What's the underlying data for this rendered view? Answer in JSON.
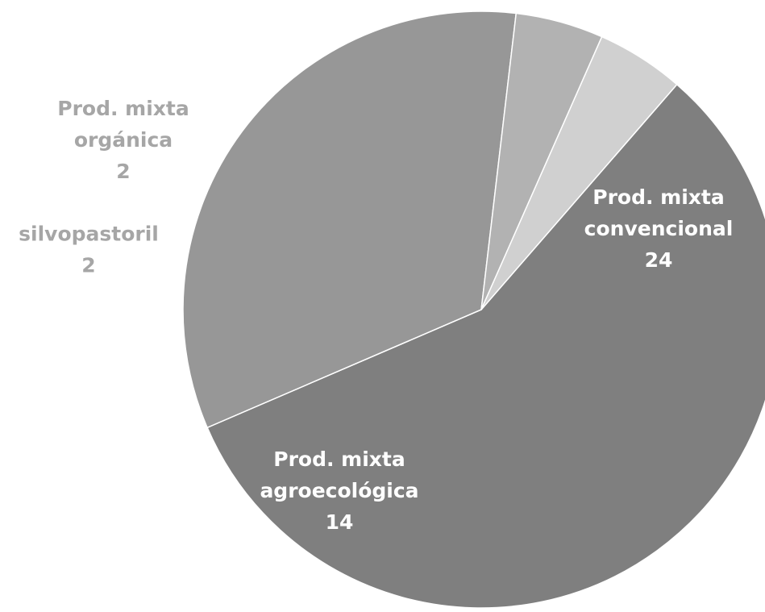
{
  "chart_data": {
    "type": "pie",
    "title": "",
    "slices": [
      {
        "label_lines": [
          "Prod. mixta",
          "convencional"
        ],
        "value": 24,
        "value_label": "24",
        "color": "#7f7f7f",
        "label_color": "#ffffff"
      },
      {
        "label_lines": [
          "Prod. mixta",
          "agroecológica"
        ],
        "value": 14,
        "value_label": "14",
        "color": "#979797",
        "label_color": "#ffffff"
      },
      {
        "label_lines": [
          "silvopastoril"
        ],
        "value": 2,
        "value_label": "2",
        "color": "#b2b2b2",
        "label_color": "#a6a6a6"
      },
      {
        "label_lines": [
          "Prod. mixta",
          "orgánica"
        ],
        "value": 2,
        "value_label": "2",
        "color": "#d0d0d0",
        "label_color": "#a6a6a6"
      }
    ],
    "start_angle_deg": -49,
    "direction": "clockwise",
    "labels_position": "inside for large slices, outside for small slices"
  }
}
